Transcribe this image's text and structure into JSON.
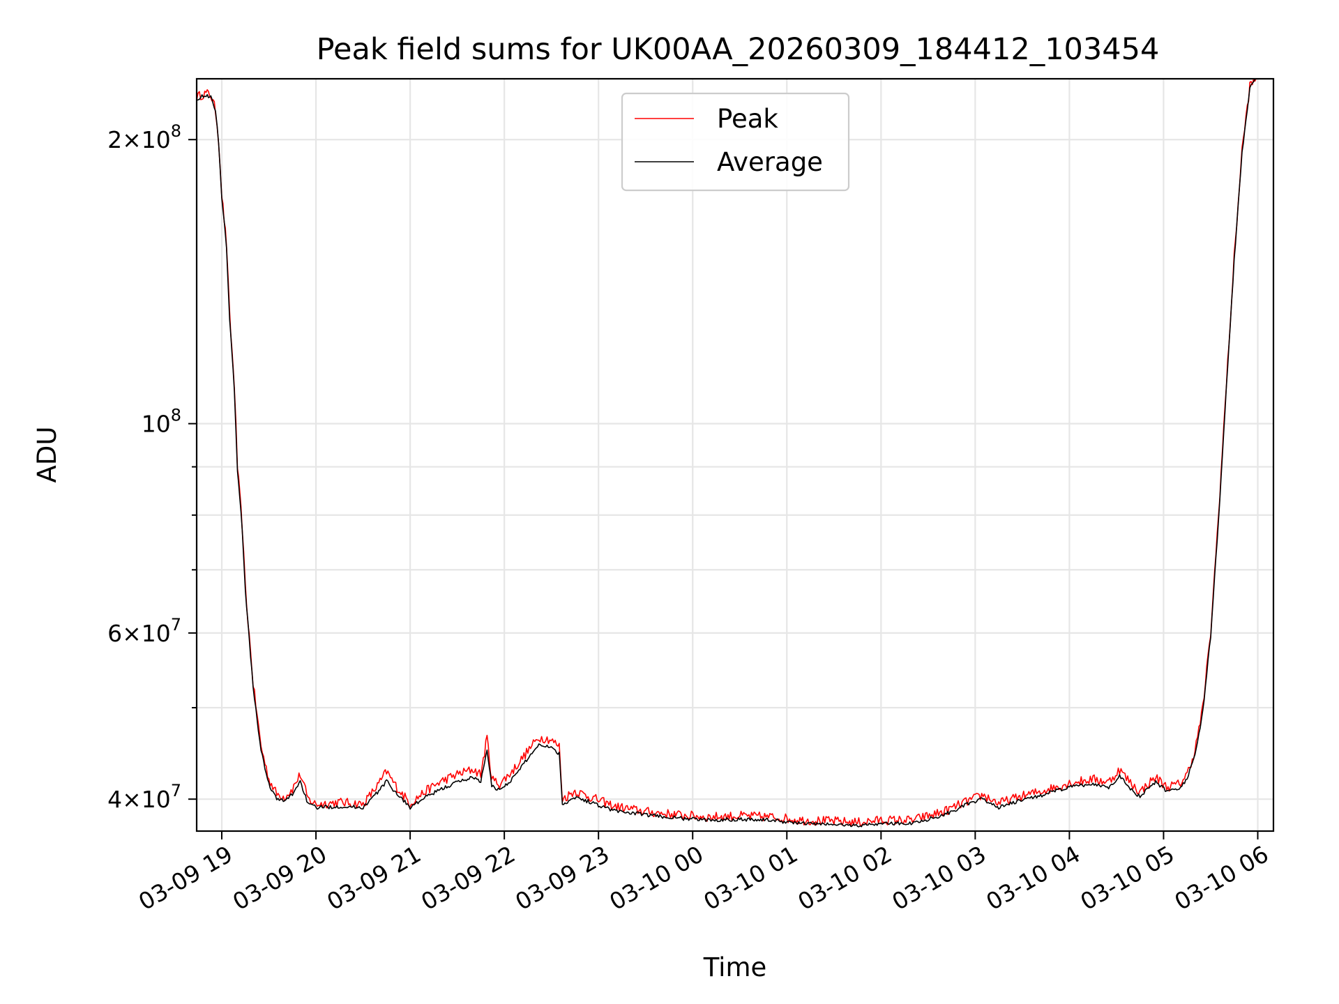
{
  "chart_data": {
    "type": "line",
    "title": "Peak field sums for UK00AA_20260309_184412_103454",
    "xlabel": "Time",
    "ylabel": "ADU",
    "yscale": "log",
    "grid": true,
    "legend_position": "top-center",
    "xlim": [
      "2026-03-09 18:44",
      "2026-03-10 06:10"
    ],
    "ylim": [
      37000000,
      232000000
    ],
    "x_ticks": [
      "2026-03-09 19:00",
      "2026-03-09 20:00",
      "2026-03-09 21:00",
      "2026-03-09 22:00",
      "2026-03-09 23:00",
      "2026-03-10 00:00",
      "2026-03-10 01:00",
      "2026-03-10 02:00",
      "2026-03-10 03:00",
      "2026-03-10 04:00",
      "2026-03-10 05:00",
      "2026-03-10 06:00"
    ],
    "x_tick_labels": [
      "03-09 19",
      "03-09 20",
      "03-09 21",
      "03-09 22",
      "03-09 23",
      "03-10 00",
      "03-10 01",
      "03-10 02",
      "03-10 03",
      "03-10 04",
      "03-10 05",
      "03-10 06"
    ],
    "y_major_ticks": [
      {
        "value": 40000000,
        "mantissa": "4",
        "exponent": "7"
      },
      {
        "value": 60000000,
        "mantissa": "6",
        "exponent": "7"
      },
      {
        "value": 100000000,
        "mantissa": "",
        "exponent": "8"
      },
      {
        "value": 200000000,
        "mantissa": "2",
        "exponent": "8"
      }
    ],
    "y_minor_ticks": [
      50000000,
      70000000,
      80000000,
      90000000
    ],
    "series": [
      {
        "name": "Peak",
        "color": "#ff0000",
        "x": [
          "2026-03-09 18:44",
          "2026-03-09 18:50",
          "2026-03-09 18:53",
          "2026-03-09 18:56",
          "2026-03-09 18:58",
          "2026-03-09 19:00",
          "2026-03-09 19:03",
          "2026-03-09 19:05",
          "2026-03-09 19:08",
          "2026-03-09 19:10",
          "2026-03-09 19:13",
          "2026-03-09 19:15",
          "2026-03-09 19:20",
          "2026-03-09 19:25",
          "2026-03-09 19:30",
          "2026-03-09 19:35",
          "2026-03-09 19:40",
          "2026-03-09 19:45",
          "2026-03-09 19:50",
          "2026-03-09 19:55",
          "2026-03-09 20:00",
          "2026-03-09 20:15",
          "2026-03-09 20:30",
          "2026-03-09 20:40",
          "2026-03-09 20:45",
          "2026-03-09 20:50",
          "2026-03-09 20:55",
          "2026-03-09 21:00",
          "2026-03-09 21:10",
          "2026-03-09 21:20",
          "2026-03-09 21:30",
          "2026-03-09 21:40",
          "2026-03-09 21:45",
          "2026-03-09 21:49",
          "2026-03-09 21:52",
          "2026-03-09 21:57",
          "2026-03-09 22:05",
          "2026-03-09 22:15",
          "2026-03-09 22:22",
          "2026-03-09 22:29",
          "2026-03-09 22:35",
          "2026-03-09 22:37",
          "2026-03-09 22:45",
          "2026-03-09 22:55",
          "2026-03-09 23:10",
          "2026-03-09 23:30",
          "2026-03-09 23:50",
          "2026-03-10 00:10",
          "2026-03-10 00:30",
          "2026-03-10 00:50",
          "2026-03-10 01:10",
          "2026-03-10 01:30",
          "2026-03-10 01:45",
          "2026-03-10 02:00",
          "2026-03-10 02:20",
          "2026-03-10 02:40",
          "2026-03-10 02:55",
          "2026-03-10 03:05",
          "2026-03-10 03:15",
          "2026-03-10 03:30",
          "2026-03-10 03:45",
          "2026-03-10 04:00",
          "2026-03-10 04:15",
          "2026-03-10 04:25",
          "2026-03-10 04:32",
          "2026-03-10 04:38",
          "2026-03-10 04:45",
          "2026-03-10 04:50",
          "2026-03-10 04:55",
          "2026-03-10 05:02",
          "2026-03-10 05:10",
          "2026-03-10 05:15",
          "2026-03-10 05:20",
          "2026-03-10 05:25",
          "2026-03-10 05:30",
          "2026-03-10 05:35",
          "2026-03-10 05:40",
          "2026-03-10 05:45",
          "2026-03-10 05:50",
          "2026-03-10 05:55",
          "2026-03-10 05:59"
        ],
        "y": [
          222000000,
          224000000,
          223000000,
          215000000,
          200000000,
          175000000,
          155000000,
          130000000,
          110000000,
          90000000,
          78000000,
          67000000,
          53000000,
          45500000,
          42000000,
          40500000,
          40200000,
          41000000,
          42500000,
          40000000,
          39500000,
          39700000,
          39500000,
          41500000,
          42800000,
          41500000,
          40500000,
          39600000,
          40800000,
          41800000,
          42500000,
          43000000,
          42500000,
          46500000,
          42000000,
          41500000,
          42800000,
          45000000,
          46500000,
          46300000,
          45500000,
          40000000,
          40800000,
          40200000,
          39300000,
          38800000,
          38500000,
          38300000,
          38400000,
          38300000,
          38000000,
          37900000,
          37800000,
          38000000,
          38000000,
          38800000,
          39800000,
          40400000,
          39600000,
          40300000,
          40900000,
          41600000,
          42000000,
          41700000,
          43000000,
          41800000,
          40700000,
          41500000,
          42200000,
          41200000,
          41500000,
          42500000,
          45000000,
          50000000,
          60000000,
          80000000,
          110000000,
          150000000,
          195000000,
          228000000,
          232000000
        ]
      },
      {
        "name": "Average",
        "color": "#000000",
        "x": [
          "2026-03-09 18:44",
          "2026-03-09 18:50",
          "2026-03-09 18:53",
          "2026-03-09 18:56",
          "2026-03-09 18:58",
          "2026-03-09 19:00",
          "2026-03-09 19:03",
          "2026-03-09 19:05",
          "2026-03-09 19:08",
          "2026-03-09 19:10",
          "2026-03-09 19:13",
          "2026-03-09 19:15",
          "2026-03-09 19:20",
          "2026-03-09 19:25",
          "2026-03-09 19:30",
          "2026-03-09 19:35",
          "2026-03-09 19:40",
          "2026-03-09 19:45",
          "2026-03-09 19:50",
          "2026-03-09 19:55",
          "2026-03-09 20:00",
          "2026-03-09 20:15",
          "2026-03-09 20:30",
          "2026-03-09 20:40",
          "2026-03-09 20:45",
          "2026-03-09 20:50",
          "2026-03-09 20:55",
          "2026-03-09 21:00",
          "2026-03-09 21:10",
          "2026-03-09 21:20",
          "2026-03-09 21:30",
          "2026-03-09 21:40",
          "2026-03-09 21:45",
          "2026-03-09 21:49",
          "2026-03-09 21:52",
          "2026-03-09 21:57",
          "2026-03-09 22:05",
          "2026-03-09 22:15",
          "2026-03-09 22:22",
          "2026-03-09 22:29",
          "2026-03-09 22:35",
          "2026-03-09 22:37",
          "2026-03-09 22:45",
          "2026-03-09 22:55",
          "2026-03-09 23:10",
          "2026-03-09 23:30",
          "2026-03-09 23:50",
          "2026-03-10 00:10",
          "2026-03-10 00:30",
          "2026-03-10 00:50",
          "2026-03-10 01:10",
          "2026-03-10 01:30",
          "2026-03-10 01:45",
          "2026-03-10 02:00",
          "2026-03-10 02:20",
          "2026-03-10 02:40",
          "2026-03-10 02:55",
          "2026-03-10 03:05",
          "2026-03-10 03:15",
          "2026-03-10 03:30",
          "2026-03-10 03:45",
          "2026-03-10 04:00",
          "2026-03-10 04:15",
          "2026-03-10 04:25",
          "2026-03-10 04:32",
          "2026-03-10 04:38",
          "2026-03-10 04:45",
          "2026-03-10 04:50",
          "2026-03-10 04:55",
          "2026-03-10 05:02",
          "2026-03-10 05:10",
          "2026-03-10 05:15",
          "2026-03-10 05:20",
          "2026-03-10 05:25",
          "2026-03-10 05:30",
          "2026-03-10 05:35",
          "2026-03-10 05:40",
          "2026-03-10 05:45",
          "2026-03-10 05:50",
          "2026-03-10 05:55",
          "2026-03-10 05:59"
        ],
        "y": [
          221000000,
          223000000,
          222000000,
          214000000,
          199000000,
          174000000,
          154000000,
          129000000,
          109000000,
          89000000,
          77500000,
          66500000,
          52500000,
          45000000,
          41500000,
          40000000,
          39800000,
          40500000,
          41800000,
          39500000,
          39200000,
          39300000,
          39200000,
          40800000,
          41800000,
          40800000,
          40000000,
          39200000,
          40200000,
          41000000,
          41700000,
          42200000,
          41800000,
          45000000,
          41300000,
          40900000,
          42000000,
          44200000,
          45700000,
          45500000,
          44700000,
          39500000,
          40200000,
          39700000,
          38900000,
          38500000,
          38200000,
          38000000,
          38100000,
          38000000,
          37700000,
          37600000,
          37500000,
          37700000,
          37700000,
          38500000,
          39500000,
          40000000,
          39200000,
          39900000,
          40500000,
          41200000,
          41500000,
          41200000,
          42300000,
          41200000,
          40200000,
          41000000,
          41700000,
          40800000,
          41100000,
          42000000,
          44500000,
          49500000,
          59500000,
          79000000,
          109000000,
          149000000,
          194000000,
          227000000,
          232000000
        ]
      }
    ]
  }
}
